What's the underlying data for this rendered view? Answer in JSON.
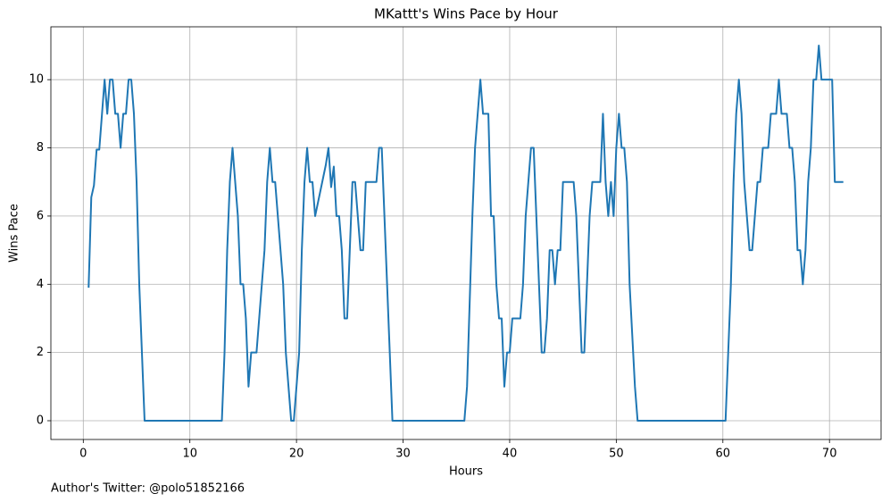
{
  "chart_data": {
    "type": "line",
    "title": "MKattt's Wins Pace by Hour",
    "x_label": "Hours",
    "y_label": "Wins Pace",
    "footnote": "Author's Twitter: @polo51852166",
    "color": "#1f77b4",
    "grid": true,
    "x": [
      0.5,
      0.75,
      1,
      1.25,
      1.5,
      2,
      2.25,
      2.5,
      2.75,
      3,
      3.25,
      3.5,
      3.75,
      4,
      4.25,
      4.5,
      4.75,
      5,
      5.25,
      5.5,
      5.75,
      13,
      13.25,
      13.5,
      13.75,
      14,
      14.5,
      14.75,
      15,
      15.25,
      15.5,
      15.75,
      16.25,
      16.75,
      17,
      17.25,
      17.5,
      17.75,
      18,
      18.75,
      19,
      19.5,
      19.75,
      20.25,
      20.5,
      20.75,
      21,
      21.25,
      21.5,
      21.75,
      22.75,
      23,
      23.25,
      23.5,
      23.75,
      24,
      24.25,
      24.5,
      24.75,
      25,
      25.25,
      25.5,
      26,
      26.25,
      26.5,
      27.5,
      27.75,
      28,
      28.25,
      28.5,
      28.75,
      29,
      35.75,
      36,
      36.5,
      36.75,
      37.25,
      37.5,
      38,
      38.25,
      38.5,
      38.75,
      39,
      39.25,
      39.5,
      39.75,
      40,
      40.25,
      41,
      41.25,
      41.5,
      42,
      42.25,
      42.5,
      42.75,
      43,
      43.25,
      43.5,
      43.75,
      44,
      44.25,
      44.5,
      44.75,
      45,
      46,
      46.25,
      46.75,
      47,
      47.5,
      47.75,
      48.5,
      48.75,
      49,
      49.25,
      49.5,
      49.75,
      50,
      50.25,
      50.5,
      50.75,
      51,
      51.25,
      51.75,
      52,
      60.25,
      60.5,
      60.75,
      61,
      61.25,
      61.5,
      61.75,
      62,
      62.5,
      62.75,
      63,
      63.25,
      63.5,
      63.75,
      64.25,
      64.5,
      65,
      65.25,
      65.5,
      66,
      66.25,
      66.5,
      66.75,
      67,
      67.25,
      67.5,
      67.75,
      68,
      68.25,
      68.5,
      68.75,
      69,
      69.25,
      70.25,
      70.5,
      71.3
    ],
    "values": [
      3.9,
      6.55,
      6.9,
      7.95,
      7.95,
      10,
      9,
      10,
      10,
      9,
      9,
      8,
      9,
      9,
      10,
      10,
      9,
      7,
      4,
      2,
      0,
      0,
      2,
      5,
      7,
      8,
      6,
      4,
      4,
      3,
      1,
      2,
      2,
      4,
      5,
      7,
      8,
      7,
      7,
      4,
      2,
      0,
      0,
      2,
      5,
      7,
      8,
      7,
      7,
      6,
      7.5,
      8,
      6.85,
      7.45,
      6,
      6,
      5,
      3,
      3,
      5,
      7,
      7,
      5,
      5,
      7,
      7,
      8,
      8,
      6,
      4,
      2,
      0,
      0,
      1,
      6,
      8,
      10,
      9,
      9,
      6,
      6,
      4,
      3,
      3,
      1,
      2,
      2,
      3,
      3,
      4,
      6,
      8,
      8,
      6,
      4,
      2,
      2,
      3,
      5,
      5,
      4,
      5,
      5,
      7,
      7,
      6,
      2,
      2,
      6,
      7,
      7,
      9,
      7,
      6,
      7,
      6,
      8,
      9,
      8,
      8,
      7,
      4,
      1,
      0,
      0,
      2,
      4,
      7,
      9,
      10,
      9,
      7,
      5,
      5,
      6,
      7,
      7,
      8,
      8,
      9,
      9,
      10,
      9,
      9,
      8,
      8,
      7,
      5,
      5,
      4,
      5,
      7,
      8,
      10,
      10,
      11,
      10,
      10,
      7,
      7
    ],
    "xlim": [
      -3.04,
      74.84
    ],
    "xticks": [
      0,
      10,
      20,
      30,
      40,
      50,
      60,
      70
    ],
    "ylim": [
      -0.55,
      11.55
    ],
    "yticks": [
      0,
      2,
      4,
      6,
      8,
      10
    ]
  }
}
